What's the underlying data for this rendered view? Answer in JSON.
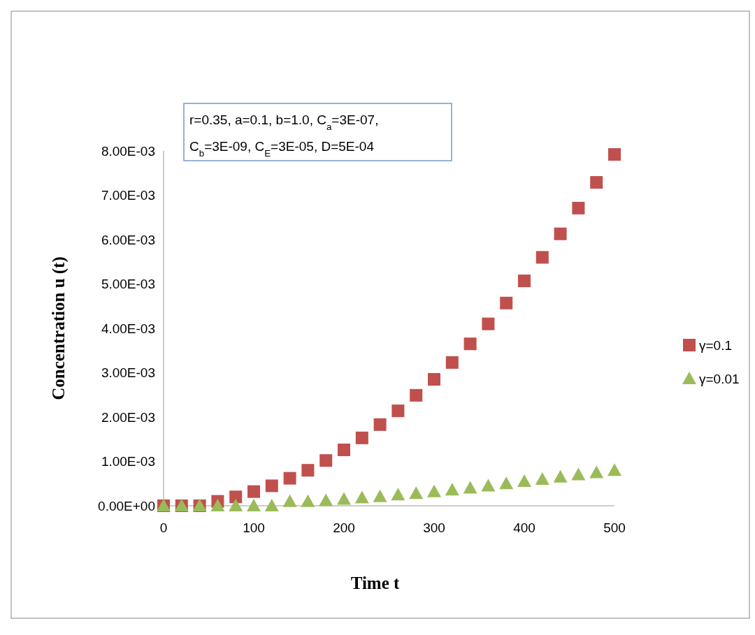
{
  "chart_data": {
    "type": "scatter",
    "xlabel": "Time t",
    "ylabel": "Concentration u (t)",
    "annotations": [
      "r=0.35, a=0.1, b=1.0, C$_{a}$=3E-07, C$_{b}$=3E-09, C$_{E}$=3E-05, D=5E-04"
    ],
    "x": [
      0,
      20,
      40,
      60,
      80,
      100,
      120,
      140,
      160,
      180,
      200,
      220,
      240,
      260,
      280,
      300,
      320,
      340,
      360,
      380,
      400,
      420,
      440,
      460,
      480,
      500
    ],
    "series": [
      {
        "name": "γ=0.1",
        "color": "#c0504d",
        "marker": "square",
        "values": [
          0,
          0,
          0,
          0.0001,
          0.0002,
          0.00032,
          0.00045,
          0.00062,
          0.0008,
          0.00102,
          0.00126,
          0.00153,
          0.00183,
          0.00214,
          0.00249,
          0.00285,
          0.00323,
          0.00365,
          0.0041,
          0.00457,
          0.00507,
          0.0056,
          0.00613,
          0.00671,
          0.00729,
          0.00792
        ]
      },
      {
        "name": "γ=0.01",
        "color": "#9bbb59",
        "marker": "triangle",
        "values": [
          0,
          0,
          0,
          0,
          0,
          0,
          0,
          0.0001,
          0.0001,
          0.00012,
          0.00015,
          0.00018,
          0.00021,
          0.00025,
          0.00028,
          0.00032,
          0.00036,
          0.0004,
          0.00045,
          0.0005,
          0.00055,
          0.0006,
          0.00065,
          0.0007,
          0.00075,
          0.0008
        ]
      }
    ],
    "xlim": [
      0,
      500
    ],
    "xticks": [
      0,
      100,
      200,
      300,
      400,
      500
    ],
    "ylim": [
      0,
      0.008
    ],
    "yticks": [
      {
        "value": 0,
        "label": "0.00E+00"
      },
      {
        "value": 0.001,
        "label": "1.00E-03"
      },
      {
        "value": 0.002,
        "label": "2.00E-03"
      },
      {
        "value": 0.003,
        "label": "3.00E-03"
      },
      {
        "value": 0.004,
        "label": "4.00E-03"
      },
      {
        "value": 0.005,
        "label": "5.00E-03"
      },
      {
        "value": 0.006,
        "label": "6.00E-03"
      },
      {
        "value": 0.007,
        "label": "7.00E-03"
      },
      {
        "value": 0.008,
        "label": "8.00E-03"
      }
    ],
    "grid": false,
    "legend": "right"
  }
}
